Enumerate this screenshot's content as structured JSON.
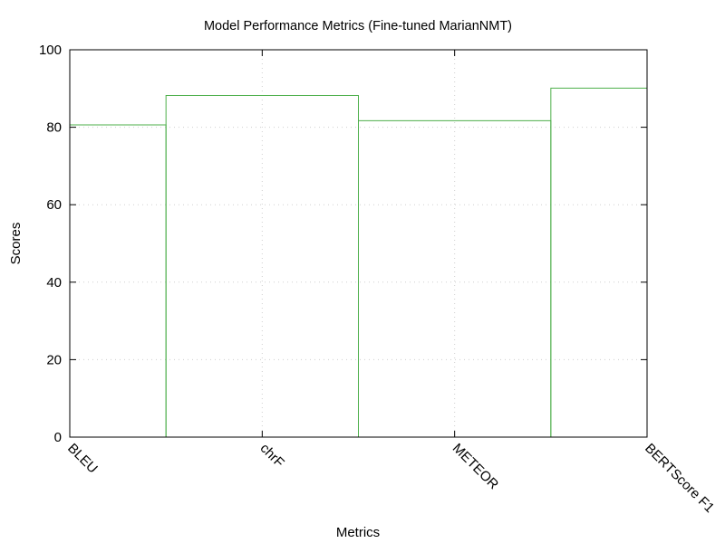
{
  "chart_data": {
    "type": "bar",
    "title": "Model Performance Metrics (Fine-tuned MarianNMT)",
    "xlabel": "Metrics",
    "ylabel": "Scores",
    "categories": [
      "BLEU",
      "chrF",
      "METEOR",
      "BERTScore F1"
    ],
    "values": [
      80.6,
      88.2,
      81.7,
      90.1
    ],
    "ylim": [
      0,
      100
    ],
    "yticks": [
      0,
      20,
      40,
      60,
      80,
      100
    ],
    "grid": true,
    "bar_style": "step-outline",
    "colors": {
      "bar": "#4daf4a",
      "grid": "#cfcfcf",
      "axis": "#000000"
    }
  }
}
